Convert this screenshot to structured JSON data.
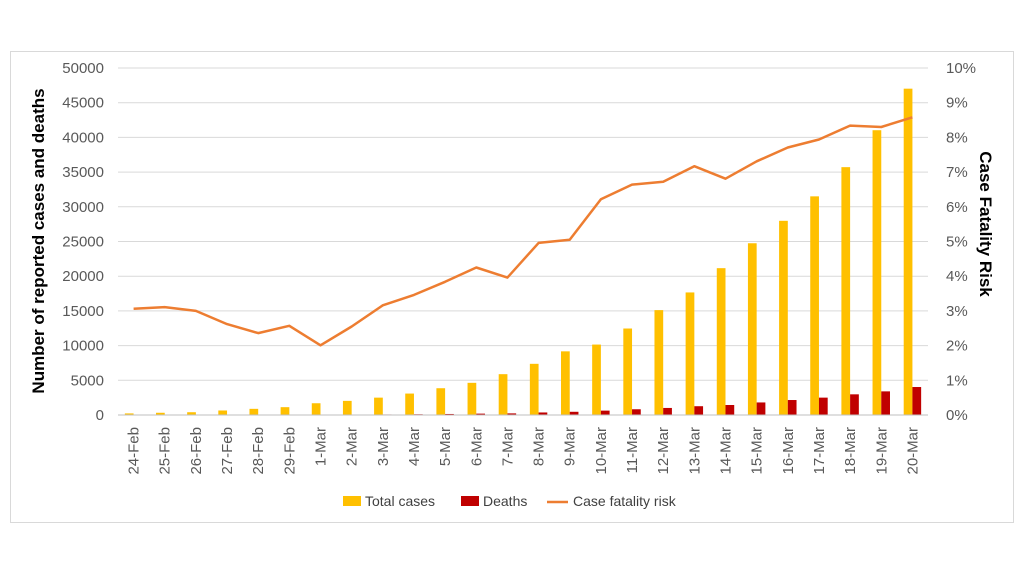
{
  "chart_data": {
    "type": "bar",
    "categories": [
      "24-Feb",
      "25-Feb",
      "26-Feb",
      "27-Feb",
      "28-Feb",
      "29-Feb",
      "1-Mar",
      "2-Mar",
      "3-Mar",
      "4-Mar",
      "5-Mar",
      "6-Mar",
      "7-Mar",
      "8-Mar",
      "9-Mar",
      "10-Mar",
      "11-Mar",
      "12-Mar",
      "13-Mar",
      "14-Mar",
      "15-Mar",
      "16-Mar",
      "17-Mar",
      "18-Mar",
      "19-Mar",
      "20-Mar"
    ],
    "series": [
      {
        "name": "Total cases",
        "axis": "left",
        "kind": "bar",
        "color": "#ffc000",
        "values": [
          229,
          322,
          400,
          650,
          888,
          1128,
          1694,
          2036,
          2502,
          3089,
          3858,
          4636,
          5883,
          7375,
          9172,
          10149,
          12462,
          15113,
          17660,
          21157,
          24747,
          27980,
          31506,
          35713,
          41035,
          47021
        ]
      },
      {
        "name": "Deaths",
        "axis": "left",
        "kind": "bar",
        "color": "#c00000",
        "values": [
          7,
          10,
          12,
          17,
          21,
          29,
          34,
          52,
          79,
          107,
          148,
          197,
          233,
          366,
          463,
          631,
          827,
          1016,
          1266,
          1441,
          1809,
          2158,
          2503,
          2978,
          3405,
          4032
        ]
      },
      {
        "name": "Case fatality risk",
        "axis": "right",
        "kind": "line",
        "color": "#ed7d31",
        "values": [
          0.0306,
          0.0311,
          0.03,
          0.0262,
          0.0236,
          0.0257,
          0.0201,
          0.0255,
          0.0316,
          0.0346,
          0.0384,
          0.0425,
          0.0396,
          0.0496,
          0.0505,
          0.0622,
          0.0664,
          0.0672,
          0.0717,
          0.0681,
          0.0731,
          0.0771,
          0.0794,
          0.0834,
          0.083,
          0.0858
        ]
      }
    ],
    "ylabel": "Number of reported cases and deaths",
    "y2label": "Case Fatality Risk",
    "ylim": [
      0,
      50000
    ],
    "yticks": [
      0,
      5000,
      10000,
      15000,
      20000,
      25000,
      30000,
      35000,
      40000,
      45000,
      50000
    ],
    "y2lim": [
      0,
      0.1
    ],
    "y2ticks": [
      "0%",
      "1%",
      "2%",
      "3%",
      "4%",
      "5%",
      "6%",
      "7%",
      "8%",
      "9%",
      "10%"
    ],
    "grid": true,
    "legend": "bottom"
  }
}
